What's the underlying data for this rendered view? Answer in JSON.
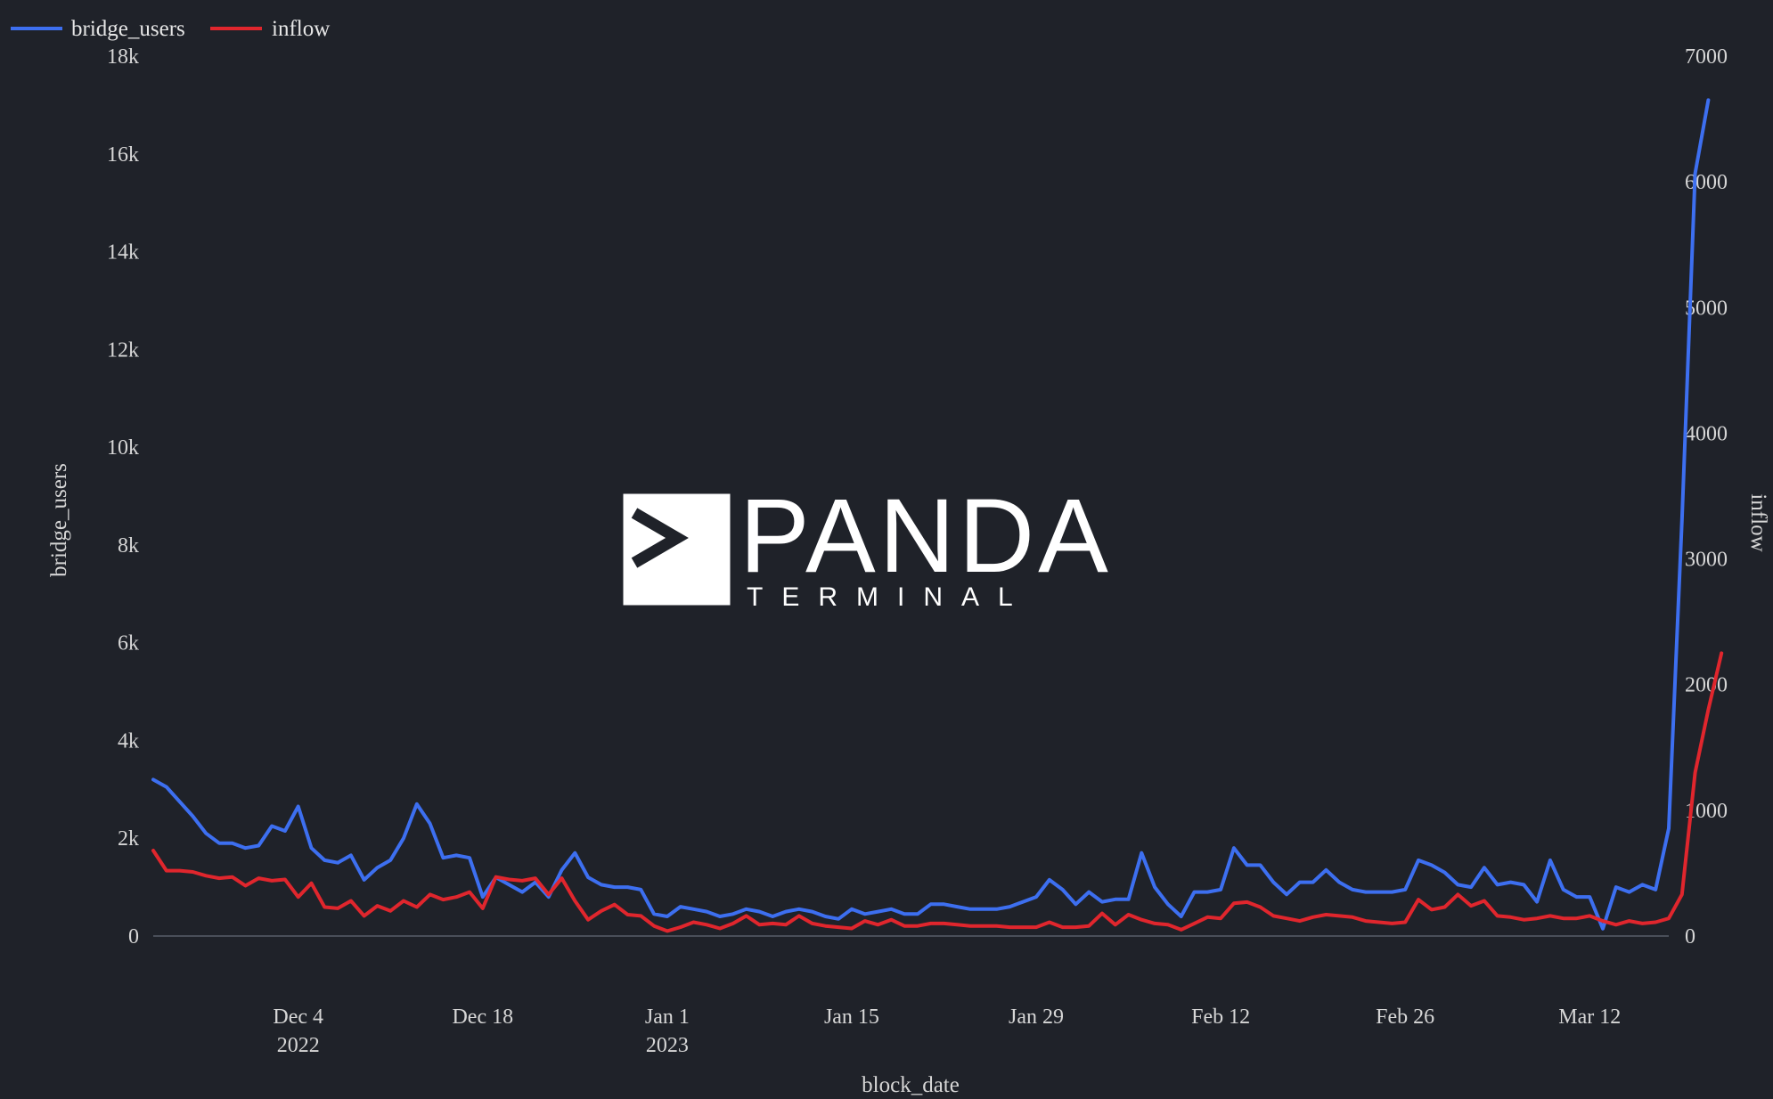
{
  "legend": [
    {
      "name": "bridge_users",
      "color": "#3d6ff0"
    },
    {
      "name": "inflow",
      "color": "#e0262d"
    }
  ],
  "watermark": {
    "main": "PANDA",
    "sub": "TERMINAL"
  },
  "chart_data": {
    "type": "line",
    "xlabel": "block_date",
    "ylabel": "bridge_users",
    "y2label": "inflow",
    "x_start": "2022-11-23",
    "x_end": "2023-03-18",
    "x_ticks": [
      {
        "date": "2022-12-04",
        "label": "Dec 4",
        "sublabel": "2022"
      },
      {
        "date": "2022-12-18",
        "label": "Dec 18",
        "sublabel": ""
      },
      {
        "date": "2023-01-01",
        "label": "Jan 1",
        "sublabel": "2023"
      },
      {
        "date": "2023-01-15",
        "label": "Jan 15",
        "sublabel": ""
      },
      {
        "date": "2023-01-29",
        "label": "Jan 29",
        "sublabel": ""
      },
      {
        "date": "2023-02-12",
        "label": "Feb 12",
        "sublabel": ""
      },
      {
        "date": "2023-02-26",
        "label": "Feb 26",
        "sublabel": ""
      },
      {
        "date": "2023-03-12",
        "label": "Mar 12",
        "sublabel": ""
      }
    ],
    "ylim": [
      0,
      18000
    ],
    "y_ticks": [
      0,
      2000,
      4000,
      6000,
      8000,
      10000,
      12000,
      14000,
      16000,
      18000
    ],
    "y_tick_labels": [
      "0",
      "2k",
      "4k",
      "6k",
      "8k",
      "10k",
      "12k",
      "14k",
      "16k",
      "18k"
    ],
    "y2lim": [
      0,
      7000
    ],
    "y2_ticks": [
      0,
      1000,
      2000,
      3000,
      4000,
      5000,
      6000,
      7000
    ],
    "y2_tick_labels": [
      "0",
      "1000",
      "2000",
      "3000",
      "4000",
      "5000",
      "6000",
      "7000"
    ],
    "grid": false,
    "legend_position": "top-left",
    "series": [
      {
        "name": "bridge_users",
        "axis": "left",
        "color": "#3d6ff0",
        "values": [
          3200,
          3050,
          2750,
          2450,
          2100,
          1900,
          1900,
          1800,
          1850,
          2250,
          2150,
          2650,
          1800,
          1550,
          1500,
          1650,
          1150,
          1400,
          1550,
          2000,
          2700,
          2300,
          1600,
          1650,
          1600,
          800,
          1200,
          1050,
          900,
          1100,
          800,
          1350,
          1700,
          1200,
          1050,
          1000,
          1000,
          950,
          450,
          400,
          600,
          550,
          500,
          400,
          450,
          550,
          500,
          400,
          500,
          550,
          500,
          400,
          350,
          550,
          450,
          500,
          550,
          450,
          450,
          650,
          650,
          600,
          550,
          550,
          550,
          600,
          700,
          800,
          1150,
          950,
          650,
          900,
          700,
          750,
          750,
          1700,
          1000,
          650,
          400,
          900,
          900,
          950,
          1800,
          1450,
          1450,
          1100,
          850,
          1100,
          1100,
          1350,
          1100,
          950,
          900,
          900,
          900,
          950,
          1550,
          1450,
          1300,
          1050,
          1000,
          1400,
          1050,
          1100,
          1050,
          700,
          1550,
          950,
          800,
          800,
          150,
          1000,
          900,
          1050,
          950,
          2200,
          8500,
          15600,
          17100
        ]
      },
      {
        "name": "inflow",
        "axis": "right",
        "color": "#e0262d",
        "values": [
          680,
          520,
          520,
          510,
          480,
          460,
          470,
          400,
          460,
          440,
          450,
          310,
          420,
          230,
          220,
          280,
          160,
          240,
          200,
          280,
          230,
          330,
          290,
          310,
          350,
          220,
          470,
          450,
          440,
          460,
          330,
          460,
          280,
          130,
          200,
          250,
          170,
          160,
          80,
          40,
          70,
          110,
          90,
          60,
          100,
          160,
          90,
          100,
          90,
          160,
          100,
          80,
          70,
          60,
          120,
          90,
          130,
          80,
          80,
          100,
          100,
          90,
          80,
          80,
          80,
          70,
          70,
          70,
          110,
          70,
          70,
          80,
          180,
          90,
          170,
          130,
          100,
          90,
          50,
          100,
          150,
          140,
          260,
          270,
          230,
          160,
          140,
          120,
          150,
          170,
          160,
          150,
          120,
          110,
          100,
          110,
          290,
          210,
          230,
          330,
          240,
          280,
          160,
          150,
          130,
          140,
          160,
          140,
          140,
          160,
          120,
          90,
          120,
          100,
          110,
          140,
          330,
          1300,
          1800,
          2250
        ]
      }
    ]
  }
}
